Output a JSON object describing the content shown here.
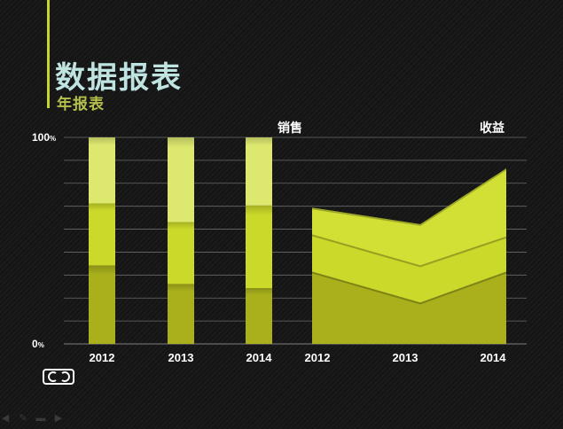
{
  "header": {
    "title": "数据报表",
    "subtitle": "年报表"
  },
  "chart_data": [
    {
      "type": "bar",
      "stacked": true,
      "title": "销售",
      "categories": [
        "2012",
        "2013",
        "2014"
      ],
      "ylim": [
        0,
        100
      ],
      "ytick_labels": [
        "0%",
        "100%"
      ],
      "series": [
        {
          "values": [
            38,
            29,
            27
          ]
        },
        {
          "values": [
            30,
            30,
            40
          ]
        },
        {
          "values": [
            32,
            41,
            33
          ]
        }
      ],
      "colors": [
        "#a9b01c",
        "#cbd92a",
        "#dde86f"
      ]
    },
    {
      "type": "area",
      "stacked": true,
      "title": "收益",
      "x": [
        "2012",
        "2013",
        "2014"
      ],
      "ylim": [
        0,
        100
      ],
      "series": [
        {
          "values": [
            35,
            20,
            35
          ]
        },
        {
          "values": [
            18,
            18,
            17
          ]
        },
        {
          "values": [
            13,
            20,
            33
          ]
        }
      ],
      "colors": [
        "#a9b01c",
        "#cbd92a",
        "#d2df35"
      ]
    }
  ],
  "toolbar": {
    "icons": [
      "arrow-left-icon",
      "pen-icon",
      "slides-icon",
      "arrow-right-icon"
    ]
  }
}
